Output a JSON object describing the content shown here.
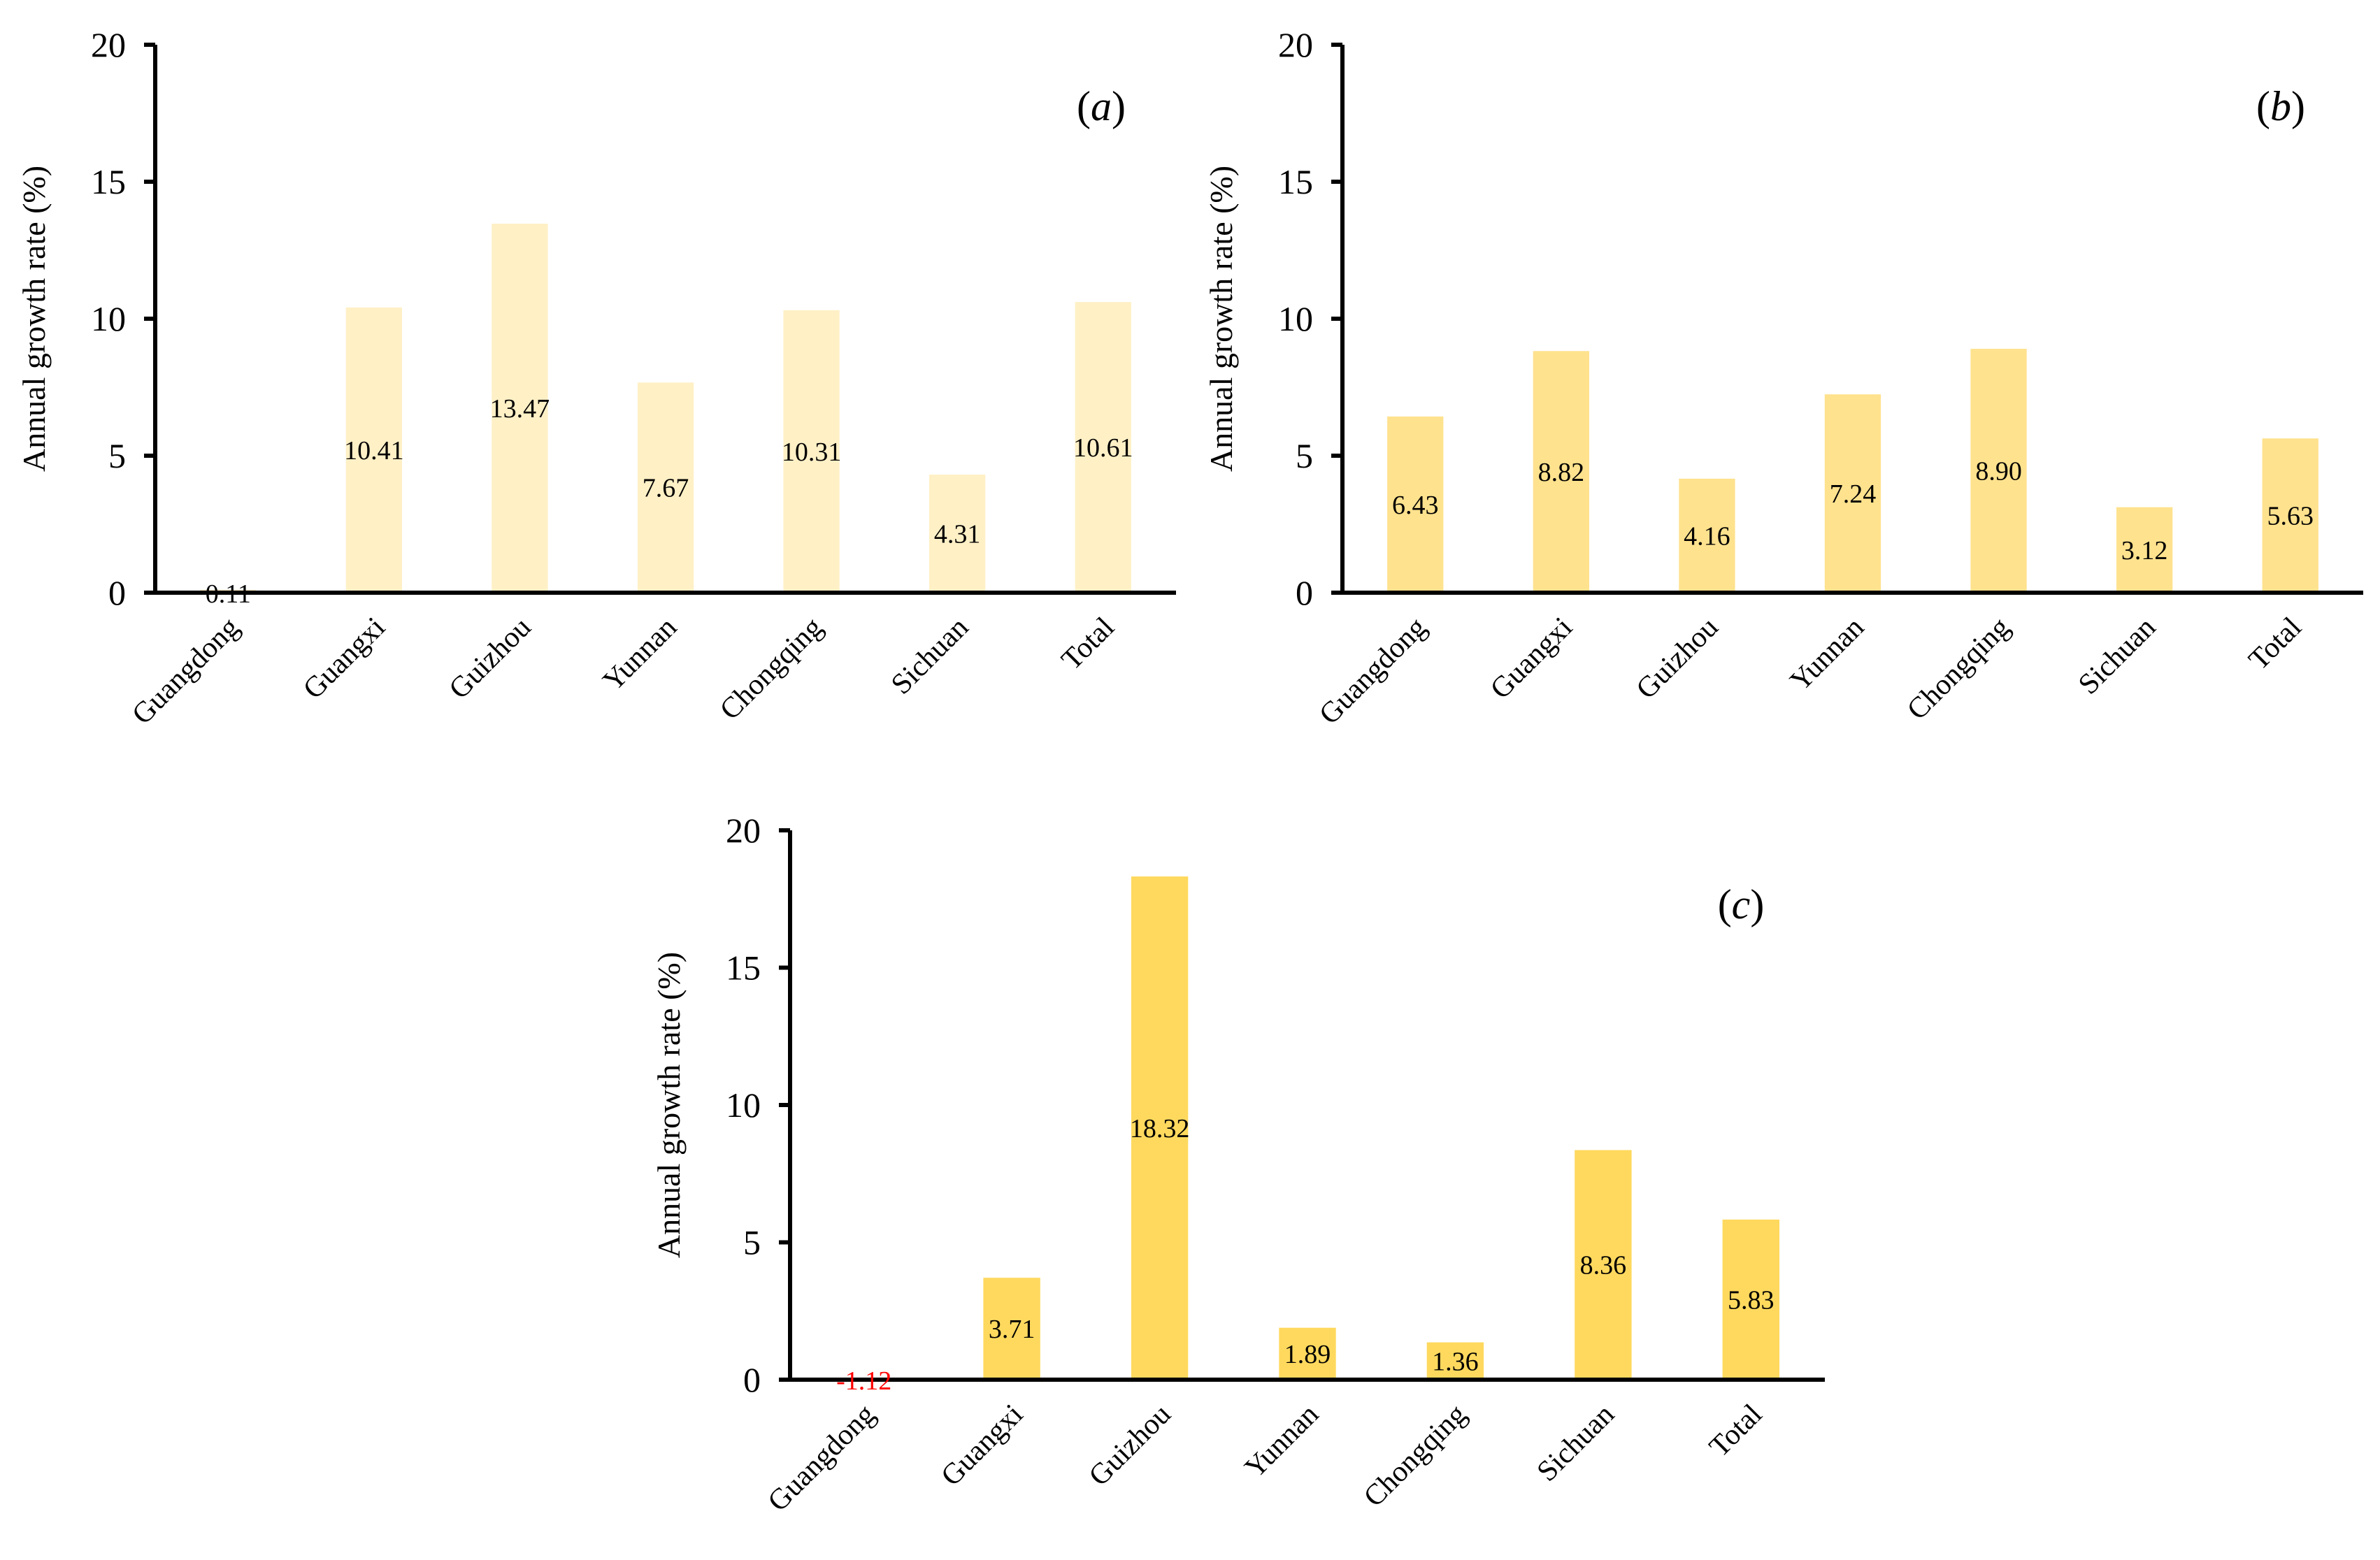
{
  "chart_data": [
    {
      "type": "bar",
      "panel_label": "a",
      "ylabel": "Annual  growth rate (%)",
      "ylim": [
        0,
        20
      ],
      "yticks": [
        0,
        5,
        10,
        15,
        20
      ],
      "categories": [
        "Guangdong",
        "Guangxi",
        "Guizhou",
        "Yunnan",
        "Chongqing",
        "Sichuan",
        "Total"
      ],
      "values": [
        0.11,
        10.41,
        13.47,
        7.67,
        10.31,
        4.31,
        10.61
      ],
      "data_labels": [
        "0.11",
        "10.41",
        "13.47",
        "7.67",
        "10.31",
        "4.31",
        "10.61"
      ],
      "bar_color": "#FFF0C6",
      "negative_label_color": "#FF0000"
    },
    {
      "type": "bar",
      "panel_label": "b",
      "ylabel": "Annual  growth rate (%)",
      "ylim": [
        0,
        20
      ],
      "yticks": [
        0,
        5,
        10,
        15,
        20
      ],
      "categories": [
        "Guangdong",
        "Guangxi",
        "Guizhou",
        "Yunnan",
        "Chongqing",
        "Sichuan",
        "Total"
      ],
      "values": [
        6.43,
        8.82,
        4.16,
        7.24,
        8.9,
        3.12,
        5.63
      ],
      "data_labels": [
        "6.43",
        "8.82",
        "4.16",
        "7.24",
        "8.90",
        "3.12",
        "5.63"
      ],
      "bar_color": "#FFE28E",
      "negative_label_color": "#FF0000"
    },
    {
      "type": "bar",
      "panel_label": "c",
      "ylabel": "Annual  growth rate (%)",
      "ylim": [
        0,
        20
      ],
      "yticks": [
        0,
        5,
        10,
        15,
        20
      ],
      "categories": [
        "Guangdong",
        "Guangxi",
        "Guizhou",
        "Yunnan",
        "Chongqing",
        "Sichuan",
        "Total"
      ],
      "values": [
        -1.12,
        3.71,
        18.32,
        1.89,
        1.36,
        8.36,
        5.83
      ],
      "data_labels": [
        "-1.12",
        "3.71",
        "18.32",
        "1.89",
        "1.36",
        "8.36",
        "5.83"
      ],
      "bar_color": "#FFD95E",
      "negative_label_color": "#FF0000"
    }
  ]
}
